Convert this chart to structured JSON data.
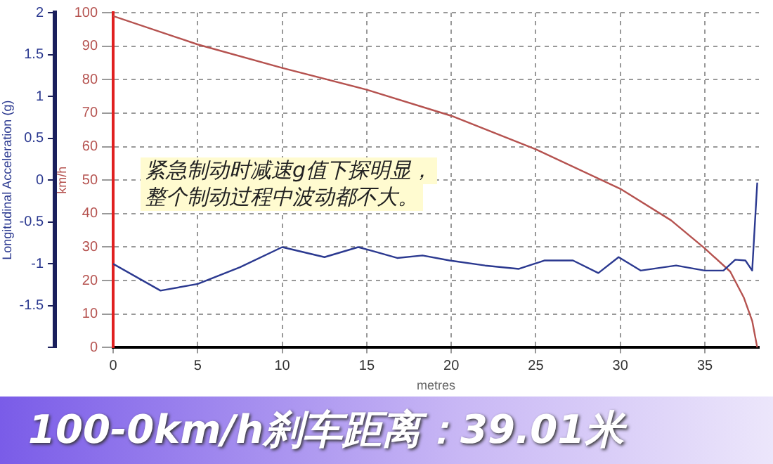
{
  "chart_data": {
    "type": "line",
    "title": "100-0km/h刹车距离：39.01米",
    "xlabel": "metres",
    "ylabel": "Longitudinal Acceleration (g)",
    "y2label": "km/h",
    "annotations": [
      "紧急制动时减速g值下探明显，",
      "整个制动过程中波动都不大。"
    ],
    "series": [
      {
        "name": null,
        "color": "#2b3990",
        "axis": "y",
        "x": [
          0,
          2.8,
          5,
          7.5,
          10,
          12.5,
          14.5,
          15.4,
          16.8,
          18.3,
          19.9,
          22,
          24,
          25.5,
          27.2,
          28.7,
          29.9,
          31.2,
          33.3,
          35,
          36.1,
          36.8,
          37.4,
          37.8,
          38.1
        ],
        "values": [
          -1,
          -1.32,
          -1.24,
          -1.04,
          -0.8,
          -0.92,
          -0.8,
          -0.85,
          -0.93,
          -0.9,
          -0.96,
          -1.02,
          -1.06,
          -0.96,
          -0.96,
          -1.11,
          -0.92,
          -1.08,
          -1.02,
          -1.08,
          -1.08,
          -0.95,
          -0.96,
          -1.08,
          -0.03
        ]
      },
      {
        "name": null,
        "color": "#b5524f",
        "axis": "y2",
        "x": [
          0,
          5,
          10,
          15,
          20,
          25,
          30,
          33,
          35,
          36.5,
          37.3,
          37.8,
          38.1
        ],
        "values": [
          99,
          90.5,
          83.5,
          77,
          69.2,
          59.2,
          47.4,
          38,
          29.6,
          22.7,
          15,
          8,
          0
        ]
      }
    ],
    "xlim": [
      0,
      38.2
    ],
    "xticks": [
      0,
      5,
      10,
      15,
      20,
      25,
      30,
      35
    ],
    "ylim": [
      -2,
      2
    ],
    "yticks": [
      {
        "value": -2,
        "label": null
      },
      -1.5,
      -1,
      -0.5,
      0,
      0.5,
      1,
      1.5,
      2
    ],
    "y2lim": [
      0,
      100
    ],
    "y2ticks": [
      0,
      10,
      20,
      30,
      40,
      50,
      60,
      70,
      80,
      90,
      100
    ],
    "grid": true,
    "legend": false,
    "marker": "none",
    "line_style": "solid"
  }
}
